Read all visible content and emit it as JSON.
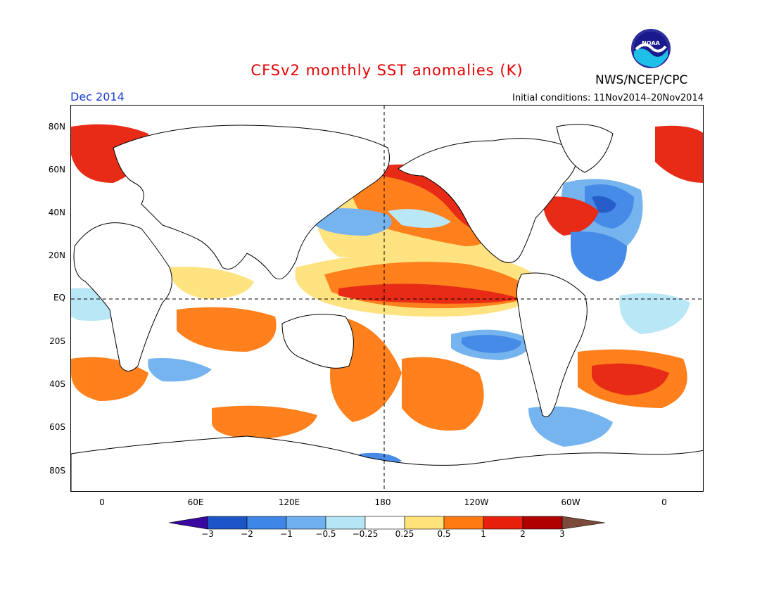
{
  "header": {
    "title": "CFSv2 monthly SST anomalies (K)",
    "month": "Dec 2014",
    "initial_conditions": "Initial conditions: 11Nov2014–20Nov2014",
    "agency": "NWS/NCEP/CPC",
    "logo_text": "NOAA",
    "logo_icon": "noaa-logo-icon"
  },
  "map": {
    "y_ticks": [
      "80N",
      "60N",
      "40N",
      "20N",
      "EQ",
      "20S",
      "40S",
      "60S",
      "80S"
    ],
    "x_ticks": [
      "0",
      "60E",
      "120E",
      "180",
      "120W",
      "60W",
      "0"
    ]
  },
  "colorbar": {
    "labels": [
      "−3",
      "−2",
      "−1",
      "−0.5",
      "−0.25",
      "0.25",
      "0.5",
      "1",
      "2",
      "3"
    ],
    "colors": [
      "#3a07a0",
      "#1c55c8",
      "#3d85e6",
      "#6fb0ef",
      "#b6e6f6",
      "#ffffff",
      "#ffe27a",
      "#ff7a10",
      "#e6200b",
      "#b00000",
      "#7b4a3a"
    ]
  }
}
